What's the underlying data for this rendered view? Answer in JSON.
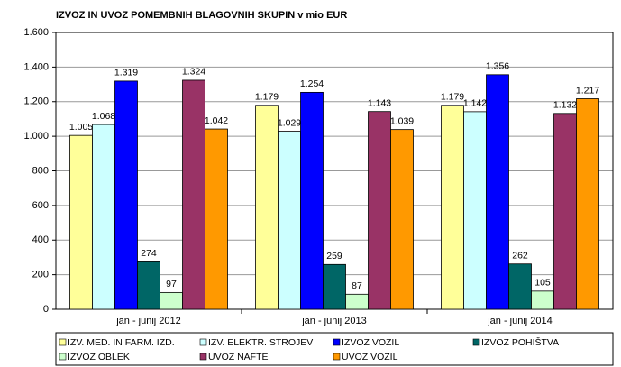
{
  "chart_data": {
    "type": "bar",
    "title": "IZVOZ IN UVOZ POMEMBNIH BLAGOVNIH SKUPIN v mio EUR",
    "categories": [
      "jan - junij 2012",
      "jan - junij 2013",
      "jan - junij 2014"
    ],
    "series": [
      {
        "name": "IZV. MED. IN FARM. IZD.",
        "color": "#ffff99",
        "values": [
          1005,
          1179,
          1179
        ],
        "value_labels": [
          "1.005",
          "1.179",
          "1.179"
        ]
      },
      {
        "name": "IZV. ELEKTR. STROJEV",
        "color": "#ccffff",
        "values": [
          1068,
          1029,
          1142
        ],
        "value_labels": [
          "1.068",
          "1.029",
          "1.142"
        ]
      },
      {
        "name": "IZVOZ VOZIL",
        "color": "#0000ff",
        "values": [
          1319,
          1254,
          1356
        ],
        "value_labels": [
          "1.319",
          "1.254",
          "1.356"
        ]
      },
      {
        "name": "IZVOZ POHIŠTVA",
        "color": "#006666",
        "values": [
          274,
          259,
          262
        ],
        "value_labels": [
          "274",
          "259",
          "262"
        ]
      },
      {
        "name": "IZVOZ OBLEK",
        "color": "#ccffcc",
        "values": [
          97,
          87,
          105
        ],
        "value_labels": [
          "97",
          "87",
          "105"
        ]
      },
      {
        "name": "UVOZ NAFTE",
        "color": "#993366",
        "values": [
          1324,
          1143,
          1132
        ],
        "value_labels": [
          "1.324",
          "1.143",
          "1.132"
        ]
      },
      {
        "name": "UVOZ VOZIL",
        "color": "#ff9900",
        "values": [
          1042,
          1039,
          1217
        ],
        "value_labels": [
          "1.042",
          "1.039",
          "1.217"
        ]
      }
    ],
    "ylim": [
      0,
      1600
    ],
    "yticks": [
      0,
      200,
      400,
      600,
      800,
      {
        "value": 1000,
        "label": "1.000"
      },
      {
        "value": 1200,
        "label": "1.200"
      },
      {
        "value": 1400,
        "label": "1.400"
      },
      {
        "value": 1600,
        "label": "1.600"
      }
    ],
    "grid": true,
    "legend": "bottom"
  }
}
